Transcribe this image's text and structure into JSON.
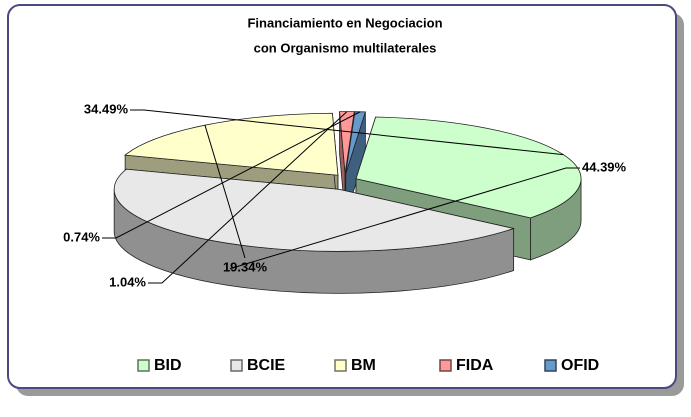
{
  "chart_data": {
    "type": "pie",
    "title": [
      "Financiamiento en Negociacion",
      "con Organismo multilaterales"
    ],
    "categories": [
      "BID",
      "BCIE",
      "BM",
      "FIDA",
      "OFID"
    ],
    "values": [
      34.49,
      44.39,
      19.34,
      1.04,
      0.74
    ],
    "value_labels": [
      "34.49%",
      "44.39%",
      "19.34%",
      "1.04%",
      "0.74%"
    ],
    "colors": [
      "#ccffcc",
      "#e8e8e8",
      "#ffffcc",
      "#ff9999",
      "#6699cc"
    ],
    "legend": "bottom"
  }
}
